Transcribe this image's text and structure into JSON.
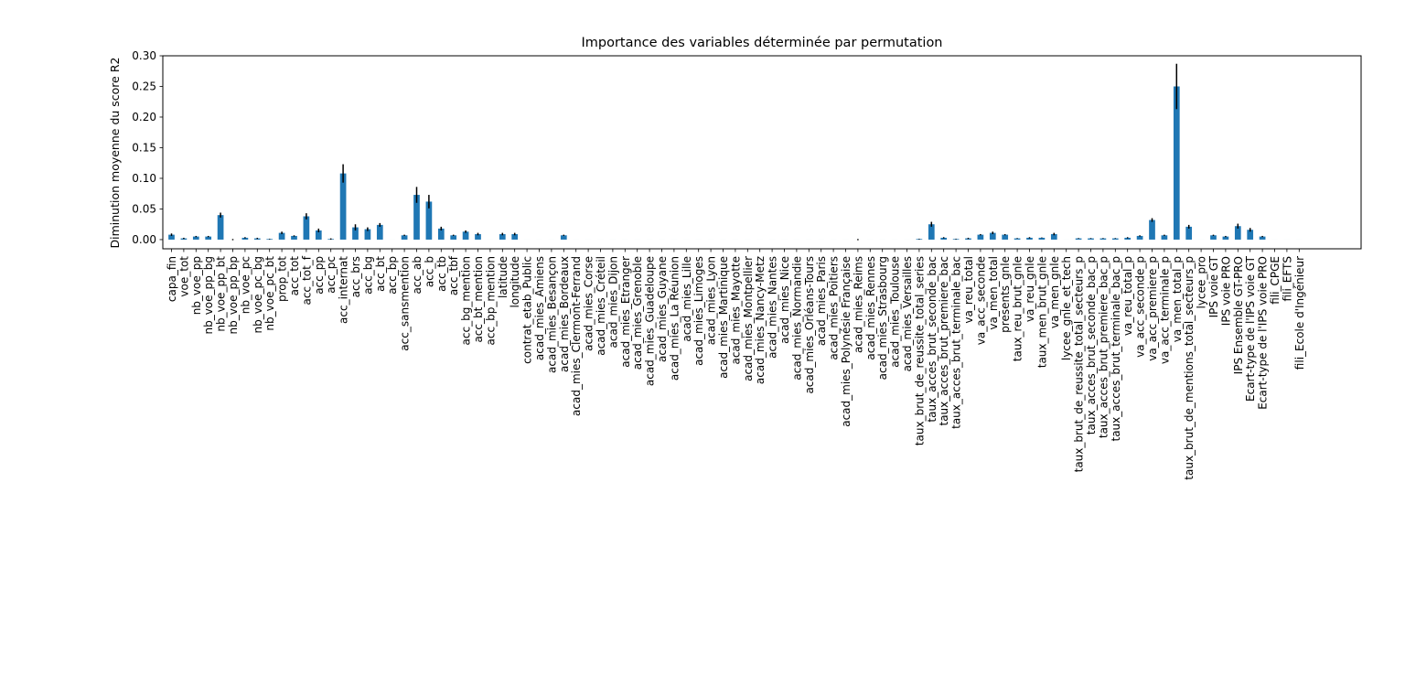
{
  "chart_data": {
    "type": "bar",
    "title": "Importance des variables déterminée par permutation",
    "xlabel": "",
    "ylabel": "Diminution moyenne du score R2",
    "ylim": [
      -0.015,
      0.3
    ],
    "yticks": [
      "0.00",
      "0.05",
      "0.10",
      "0.15",
      "0.20",
      "0.25",
      "0.30"
    ],
    "grid": false,
    "bar_color": "#1f77b4",
    "error_color": "#000000",
    "categories": [
      "capa_fin",
      "voe_tot",
      "nb_voe_pp",
      "nb_voe_pp_bg",
      "nb_voe_pp_bt",
      "nb_voe_pp_bp",
      "nb_voe_pc",
      "nb_voe_pc_bg",
      "nb_voe_pc_bt",
      "prop_tot",
      "acc_tot",
      "acc_tot_f",
      "acc_pp",
      "acc_pc",
      "acc_internat",
      "acc_brs",
      "acc_bg",
      "acc_bt",
      "acc_bp",
      "acc_sansmention",
      "acc_ab",
      "acc_b",
      "acc_tb",
      "acc_tbf",
      "acc_bg_mention",
      "acc_bt_mention",
      "acc_bp_mention",
      "latitude",
      "longitude",
      "contrat_etab_Public",
      "acad_mies_Amiens",
      "acad_mies_Besançon",
      "acad_mies_Bordeaux",
      "acad_mies_Clermont-Ferrand",
      "acad_mies_Corse",
      "acad_mies_Créteil",
      "acad_mies_Dijon",
      "acad_mies_Etranger",
      "acad_mies_Grenoble",
      "acad_mies_Guadeloupe",
      "acad_mies_Guyane",
      "acad_mies_La Réunion",
      "acad_mies_Lille",
      "acad_mies_Limoges",
      "acad_mies_Lyon",
      "acad_mies_Martinique",
      "acad_mies_Mayotte",
      "acad_mies_Montpellier",
      "acad_mies_Nancy-Metz",
      "acad_mies_Nantes",
      "acad_mies_Nice",
      "acad_mies_Normandie",
      "acad_mies_Orléans-Tours",
      "acad_mies_Paris",
      "acad_mies_Poitiers",
      "acad_mies_Polynésie Française",
      "acad_mies_Reims",
      "acad_mies_Rennes",
      "acad_mies_Strasbourg",
      "acad_mies_Toulouse",
      "acad_mies_Versailles",
      "taux_brut_de_reussite_total_series",
      "taux_acces_brut_seconde_bac",
      "taux_acces_brut_premiere_bac",
      "taux_acces_brut_terminale_bac",
      "va_reu_total",
      "va_acc_seconde",
      "va_men_total",
      "presents_gnle",
      "taux_reu_brut_gnle",
      "va_reu_gnle",
      "taux_men_brut_gnle",
      "va_men_gnle",
      "lycee_gnle_et_tech",
      "taux_brut_de_reussite_total_secteurs_p",
      "taux_acces_brut_seconde_bac_p",
      "taux_acces_brut_premiere_bac_p",
      "taux_acces_brut_terminale_bac_p",
      "va_reu_total_p",
      "va_acc_seconde_p",
      "va_acc_premiere_p",
      "va_acc_terminale_p",
      "va_men_total_p",
      "taux_brut_de_mentions_total_secteurs_p",
      "lycee_pro",
      "IPS voie GT",
      "IPS voie PRO",
      "IPS Ensemble GT-PRO",
      "Ecart-type de l'IPS voie GT",
      "Ecart-type de l'IPS voie PRO",
      "fili_CPGE",
      "fili_EFTS",
      "fili_Ecole d'Ingénieur"
    ],
    "values": [
      0.008,
      0.002,
      0.005,
      0.005,
      0.04,
      0.0,
      0.003,
      0.002,
      0.001,
      0.011,
      0.006,
      0.038,
      0.015,
      0.001,
      0.108,
      0.02,
      0.017,
      0.024,
      0.0,
      0.007,
      0.073,
      0.062,
      0.018,
      0.007,
      0.013,
      0.009,
      0.0,
      0.009,
      0.009,
      0.0,
      0.0,
      0.0,
      0.007,
      0.0,
      0.0,
      0.0,
      0.0,
      0.0,
      0.0,
      0.0,
      0.0,
      0.0,
      0.0,
      0.0,
      0.0,
      0.0,
      0.0,
      0.0,
      0.0,
      0.0,
      0.0,
      0.0,
      0.0,
      0.0,
      0.0,
      0.0,
      0.0,
      0.0,
      0.0,
      0.0,
      0.0,
      0.001,
      0.025,
      0.003,
      0.001,
      0.002,
      0.008,
      0.011,
      0.008,
      0.002,
      0.003,
      0.003,
      0.009,
      0.0,
      0.002,
      0.002,
      0.002,
      0.002,
      0.003,
      0.006,
      0.032,
      0.007,
      0.25,
      0.021,
      0.0,
      0.007,
      0.005,
      0.022,
      0.016,
      0.005,
      0.0,
      0.0,
      0.0
    ],
    "errors": [
      0.002,
      0.001,
      0.001,
      0.001,
      0.004,
      0.001,
      0.001,
      0.001,
      0.0005,
      0.002,
      0.001,
      0.005,
      0.003,
      0.001,
      0.015,
      0.005,
      0.003,
      0.003,
      0.0,
      0.001,
      0.013,
      0.011,
      0.003,
      0.001,
      0.002,
      0.002,
      0.0,
      0.002,
      0.002,
      0.0,
      0.0,
      0.0,
      0.001,
      0.0,
      0.0,
      0.0,
      0.0,
      0.0,
      0.0,
      0.0,
      0.0,
      0.0,
      0.0,
      0.0,
      0.0,
      0.0,
      0.0,
      0.0,
      0.0,
      0.0,
      0.0,
      0.0,
      0.0,
      0.0,
      0.0,
      0.0,
      0.001,
      0.0,
      0.0,
      0.0,
      0.0,
      0.0005,
      0.004,
      0.001,
      0.0005,
      0.001,
      0.001,
      0.002,
      0.001,
      0.0005,
      0.001,
      0.0005,
      0.002,
      0.0,
      0.0005,
      0.0005,
      0.0005,
      0.0005,
      0.001,
      0.001,
      0.003,
      0.001,
      0.037,
      0.003,
      0.0,
      0.001,
      0.001,
      0.004,
      0.003,
      0.001,
      0.0,
      0.0,
      0.0
    ]
  }
}
